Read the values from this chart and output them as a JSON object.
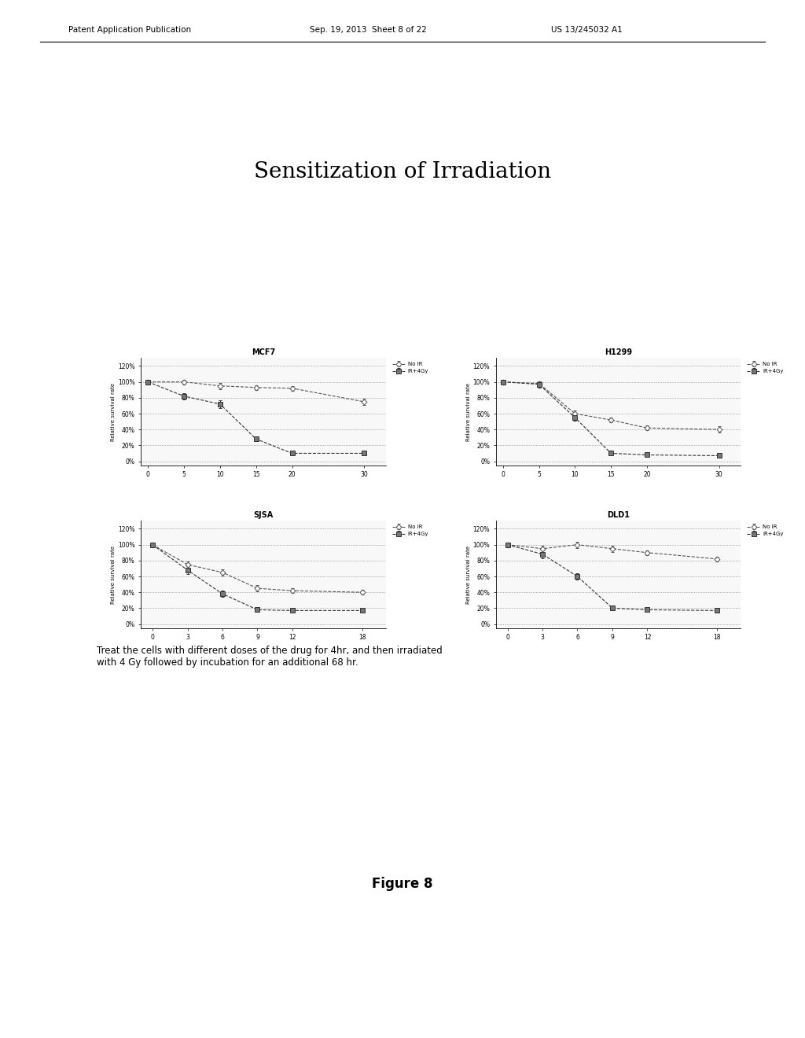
{
  "title": "Sensitization of Irradiation",
  "figure_label": "Figure 8",
  "caption": "Treat the cells with different doses of the drug for 4hr, and then irradiated\nwith 4 Gy followed by incubation for an additional 68 hr.",
  "header_left": "Patent Application Publication",
  "header_center": "Sep. 19, 2013  Sheet 8 of 22",
  "header_right": "US 13/245032 A1",
  "plots": [
    {
      "title": "MCF7",
      "x": [
        0,
        5,
        10,
        15,
        20,
        30
      ],
      "no_ir": [
        100,
        100,
        95,
        93,
        92,
        75
      ],
      "ir_4gy": [
        100,
        82,
        72,
        28,
        10,
        10
      ],
      "no_ir_err": [
        2,
        3,
        4,
        3,
        3,
        4
      ],
      "ir_err": [
        3,
        4,
        5,
        3,
        2,
        2
      ],
      "xlabel_vals": [
        0,
        5,
        10,
        15,
        20,
        30
      ],
      "yticks": [
        0,
        20,
        40,
        60,
        80,
        100,
        120
      ],
      "ylim": [
        -5,
        130
      ],
      "xlim": [
        -1,
        33
      ]
    },
    {
      "title": "H1299",
      "x": [
        0,
        5,
        10,
        15,
        20,
        30
      ],
      "no_ir": [
        100,
        98,
        60,
        52,
        42,
        40
      ],
      "ir_4gy": [
        100,
        97,
        55,
        10,
        8,
        7
      ],
      "no_ir_err": [
        2,
        3,
        4,
        3,
        3,
        4
      ],
      "ir_err": [
        3,
        4,
        4,
        2,
        2,
        2
      ],
      "xlabel_vals": [
        0,
        5,
        10,
        15,
        20,
        30
      ],
      "yticks": [
        0,
        20,
        40,
        60,
        80,
        100,
        120
      ],
      "ylim": [
        -5,
        130
      ],
      "xlim": [
        -1,
        33
      ]
    },
    {
      "title": "SJSA",
      "x": [
        0,
        3,
        6,
        9,
        12,
        18
      ],
      "no_ir": [
        100,
        75,
        65,
        45,
        42,
        40
      ],
      "ir_4gy": [
        100,
        68,
        38,
        18,
        17,
        17
      ],
      "no_ir_err": [
        2,
        4,
        4,
        4,
        3,
        3
      ],
      "ir_err": [
        3,
        5,
        4,
        3,
        2,
        2
      ],
      "xlabel_vals": [
        0,
        3,
        6,
        9,
        12,
        18
      ],
      "yticks": [
        0,
        20,
        40,
        60,
        80,
        100,
        120
      ],
      "ylim": [
        -5,
        130
      ],
      "xlim": [
        -1,
        20
      ]
    },
    {
      "title": "DLD1",
      "x": [
        0,
        3,
        6,
        9,
        12,
        18
      ],
      "no_ir": [
        100,
        95,
        100,
        95,
        90,
        82
      ],
      "ir_4gy": [
        100,
        88,
        60,
        20,
        18,
        17
      ],
      "no_ir_err": [
        2,
        4,
        4,
        4,
        3,
        3
      ],
      "ir_err": [
        3,
        5,
        4,
        3,
        2,
        2
      ],
      "xlabel_vals": [
        0,
        3,
        6,
        9,
        12,
        18
      ],
      "yticks": [
        0,
        20,
        40,
        60,
        80,
        100,
        120
      ],
      "ylim": [
        -5,
        130
      ],
      "xlim": [
        -1,
        20
      ]
    }
  ],
  "legend_no_ir": "No IR",
  "legend_ir": "IR+4Gy",
  "ylabel": "Relative survival rate",
  "bg_color": "#ffffff"
}
